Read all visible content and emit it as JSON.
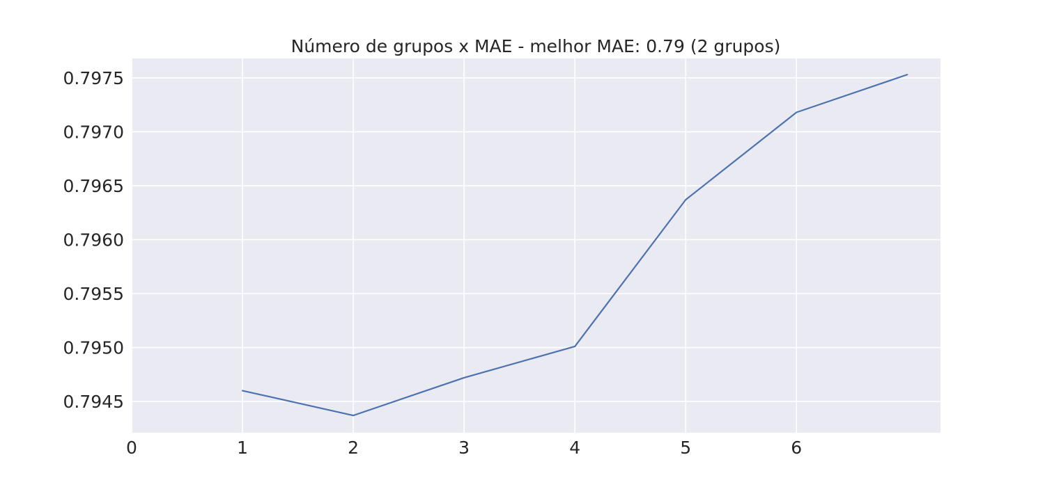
{
  "chart_data": {
    "type": "line",
    "title": "Número de grupos x MAE - melhor MAE:  0.79 (2 grupos)",
    "xlabel": "",
    "ylabel": "",
    "xlim": [
      0,
      7.3
    ],
    "ylim": [
      0.79421,
      0.79768
    ],
    "x_ticks": [
      0,
      1,
      2,
      3,
      4,
      5,
      6
    ],
    "y_ticks": [
      0.7945,
      0.795,
      0.7955,
      0.796,
      0.7965,
      0.797,
      0.7975
    ],
    "y_tick_labels": [
      "0.7945",
      "0.7950",
      "0.7955",
      "0.7960",
      "0.7965",
      "0.7970",
      "0.7975"
    ],
    "grid": true,
    "series": [
      {
        "x": [
          1,
          2,
          3,
          4,
          5,
          6,
          7
        ],
        "y": [
          0.7946,
          0.79437,
          0.79472,
          0.79501,
          0.79637,
          0.79718,
          0.79753
        ],
        "color": "#4c72b0"
      }
    ],
    "colors": {
      "plot_background": "#eaeaf2",
      "grid": "#ffffff",
      "line": "#4c72b0",
      "text": "#262626"
    }
  }
}
